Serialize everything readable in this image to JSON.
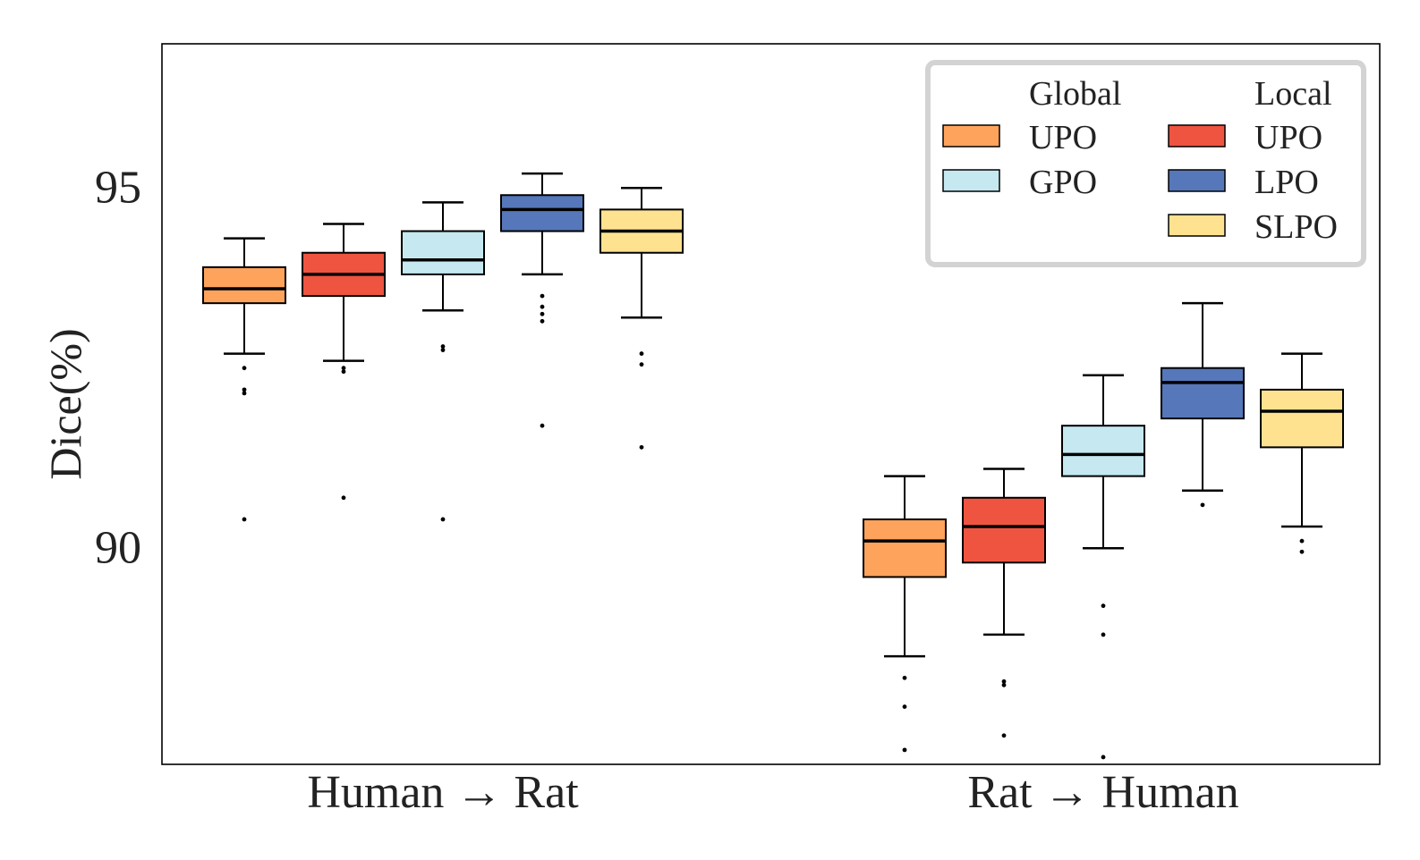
{
  "chart_data": {
    "type": "box",
    "ylabel": "Dice(%)",
    "xlabel": "",
    "ylim": [
      87.0,
      97.0
    ],
    "yticks": [
      90,
      95
    ],
    "yticklabels": [
      "90",
      "95"
    ],
    "grid": false,
    "groups": [
      "Human → Rat",
      "Rat → Human"
    ],
    "series": [
      {
        "name": "UPO (Global)",
        "color": "#fda35c",
        "boxes": [
          {
            "whisker_low": 92.7,
            "q1": 93.4,
            "median": 93.6,
            "q3": 93.9,
            "whisker_high": 94.3,
            "outliers": [
              92.5,
              92.2,
              92.15,
              90.4
            ]
          },
          {
            "whisker_low": 88.5,
            "q1": 89.6,
            "median": 90.1,
            "q3": 90.4,
            "whisker_high": 91.0,
            "outliers": [
              88.2,
              87.8,
              87.2
            ]
          }
        ]
      },
      {
        "name": "UPO (Local)",
        "color": "#ee5440",
        "boxes": [
          {
            "whisker_low": 92.6,
            "q1": 93.5,
            "median": 93.8,
            "q3": 94.1,
            "whisker_high": 94.5,
            "outliers": [
              92.5,
              92.45,
              90.7
            ]
          },
          {
            "whisker_low": 88.8,
            "q1": 89.8,
            "median": 90.3,
            "q3": 90.7,
            "whisker_high": 91.1,
            "outliers": [
              88.15,
              88.1,
              87.4
            ]
          }
        ]
      },
      {
        "name": "GPO (Global)",
        "color": "#c5e8f1",
        "boxes": [
          {
            "whisker_low": 93.3,
            "q1": 93.8,
            "median": 94.0,
            "q3": 94.4,
            "whisker_high": 94.8,
            "outliers": [
              92.8,
              92.75,
              90.4
            ]
          },
          {
            "whisker_low": 90.0,
            "q1": 91.0,
            "median": 91.3,
            "q3": 91.7,
            "whisker_high": 92.4,
            "outliers": [
              89.2,
              88.8,
              87.1
            ]
          }
        ]
      },
      {
        "name": "LPO (Local)",
        "color": "#5677b9",
        "boxes": [
          {
            "whisker_low": 93.8,
            "q1": 94.4,
            "median": 94.7,
            "q3": 94.9,
            "whisker_high": 95.2,
            "outliers": [
              93.5,
              93.35,
              93.25,
              93.15,
              91.7
            ]
          },
          {
            "whisker_low": 90.8,
            "q1": 91.8,
            "median": 92.3,
            "q3": 92.5,
            "whisker_high": 93.4,
            "outliers": [
              90.6
            ]
          }
        ]
      },
      {
        "name": "SLPO (Local)",
        "color": "#fee290",
        "boxes": [
          {
            "whisker_low": 93.2,
            "q1": 94.1,
            "median": 94.4,
            "q3": 94.7,
            "whisker_high": 95.0,
            "outliers": [
              92.7,
              92.55,
              91.4
            ]
          },
          {
            "whisker_low": 90.3,
            "q1": 91.4,
            "median": 91.9,
            "q3": 92.2,
            "whisker_high": 92.7,
            "outliers": [
              90.1,
              89.95
            ]
          }
        ]
      }
    ],
    "legend": {
      "placement": "top-right",
      "columns": [
        {
          "title": "Global",
          "entries": [
            {
              "label": "UPO",
              "color": "#fda35c"
            },
            {
              "label": "GPO",
              "color": "#c5e8f1"
            }
          ]
        },
        {
          "title": "Local",
          "entries": [
            {
              "label": "UPO",
              "color": "#ee5440"
            },
            {
              "label": "LPO",
              "color": "#5677b9"
            },
            {
              "label": "SLPO",
              "color": "#fee290"
            }
          ]
        }
      ]
    }
  }
}
